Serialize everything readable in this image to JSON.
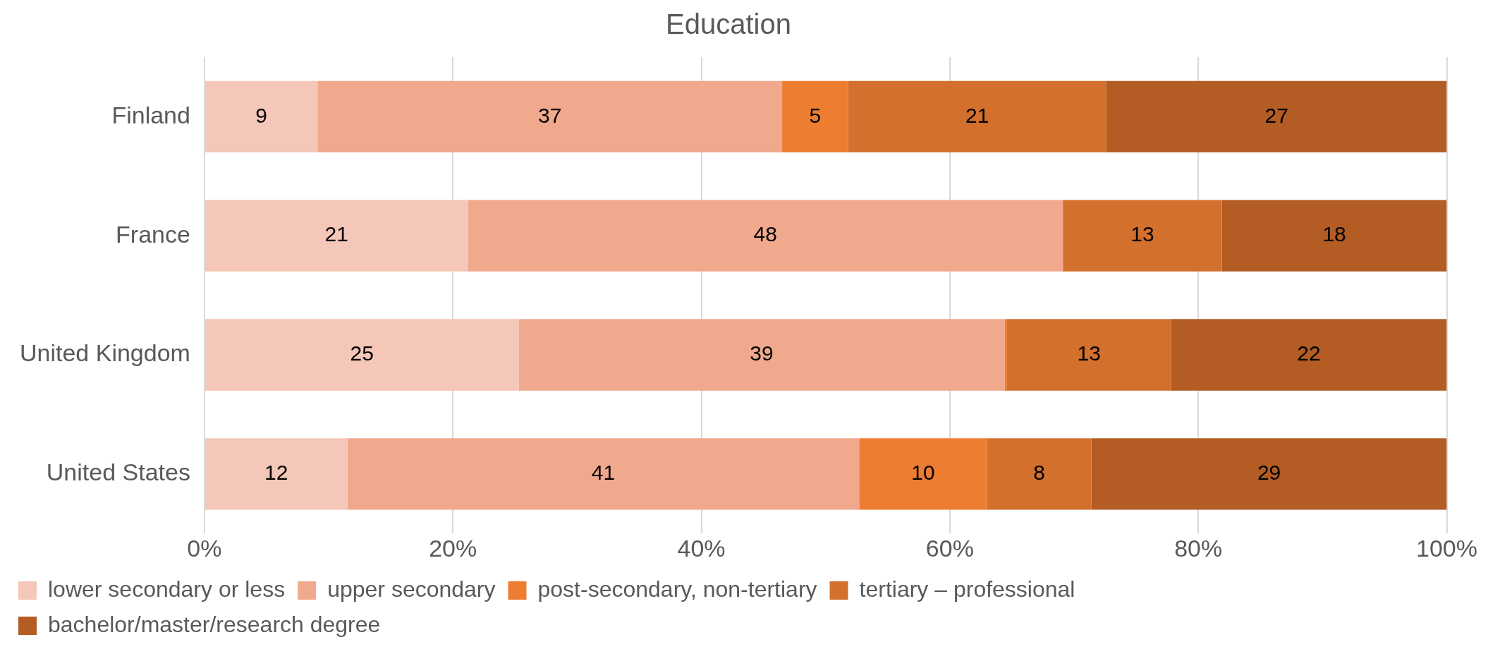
{
  "chart_data": {
    "type": "bar",
    "orientation": "horizontal",
    "stacked": true,
    "title": "Education",
    "categories": [
      "Finland",
      "France",
      "United Kingdom",
      "United States"
    ],
    "series": [
      {
        "name": "lower secondary or less",
        "color": "#f4c7b8",
        "values": [
          9.1,
          21.2,
          25.3,
          11.5
        ],
        "value_labels": [
          "9",
          "21",
          "25",
          "12"
        ]
      },
      {
        "name": "upper secondary",
        "color": "#f0a98c",
        "values": [
          37.4,
          47.9,
          39.1,
          41.2
        ],
        "value_labels": [
          "37",
          "48",
          "39",
          "41"
        ]
      },
      {
        "name": "post-secondary, non-tertiary",
        "color": "#ed7d31",
        "values": [
          5.3,
          null,
          0.2,
          10.3
        ],
        "value_labels": [
          "5",
          null,
          null,
          "10"
        ]
      },
      {
        "name": "tertiary – professional",
        "color": "#d3702d",
        "values": [
          20.8,
          12.8,
          13.2,
          8.4
        ],
        "value_labels": [
          "21",
          "13",
          "13",
          "8"
        ]
      },
      {
        "name": "bachelor/master/research degree",
        "color": "#b35c24",
        "values": [
          27.4,
          18.1,
          22.2,
          28.6
        ],
        "value_labels": [
          "27",
          "18",
          "22",
          "29"
        ]
      }
    ],
    "xlim": [
      0,
      100
    ],
    "xticks": [
      {
        "value": 0,
        "label": "0%"
      },
      {
        "value": 20,
        "label": "20%"
      },
      {
        "value": 40,
        "label": "40%"
      },
      {
        "value": 60,
        "label": "60%"
      },
      {
        "value": 80,
        "label": "80%"
      },
      {
        "value": 100,
        "label": "100%"
      }
    ],
    "grid": "x",
    "legend": "bottom"
  }
}
